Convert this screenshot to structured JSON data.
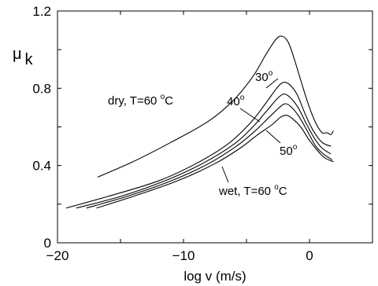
{
  "chart_data": {
    "type": "line",
    "title": "",
    "xlabel": "log v (m/s)",
    "ylabel": {
      "main": "μ",
      "sub": "k"
    },
    "xlim": [
      -20,
      5
    ],
    "ylim": [
      0,
      1.2
    ],
    "x_ticks": [
      -20,
      -10,
      0
    ],
    "x_tick_labels": [
      "−20",
      "−10",
      "0"
    ],
    "y_ticks": [
      0,
      0.4,
      0.8,
      1.2
    ],
    "y_tick_labels": [
      "0",
      "0.4",
      "0.8",
      "1.2"
    ],
    "grid": false,
    "series": [
      {
        "name": "dry, T=60 °C",
        "x": [
          -16.8,
          -14,
          -11,
          -8,
          -6,
          -4.5,
          -3.5,
          -2.7,
          -2.2,
          -1.7,
          -1.2,
          -0.5,
          0,
          0.5,
          1.0,
          1.4,
          1.7,
          1.9
        ],
        "y": [
          0.34,
          0.42,
          0.52,
          0.63,
          0.74,
          0.86,
          0.97,
          1.05,
          1.07,
          1.04,
          0.95,
          0.8,
          0.7,
          0.62,
          0.57,
          0.57,
          0.56,
          0.58
        ]
      },
      {
        "name": "30°",
        "x": [
          -19.3,
          -16,
          -12,
          -9,
          -6.5,
          -4.7,
          -3.5,
          -2.6,
          -2.1,
          -1.6,
          -1,
          -0.3,
          0.3,
          1,
          1.7
        ],
        "y": [
          0.18,
          0.24,
          0.32,
          0.41,
          0.51,
          0.62,
          0.72,
          0.8,
          0.83,
          0.82,
          0.77,
          0.66,
          0.58,
          0.52,
          0.5
        ]
      },
      {
        "name": "40°",
        "x": [
          -18.5,
          -15,
          -11.5,
          -8.5,
          -6,
          -4.5,
          -3.3,
          -2.5,
          -2,
          -1.5,
          -0.9,
          -0.2,
          0.4,
          1,
          1.7
        ],
        "y": [
          0.18,
          0.24,
          0.32,
          0.41,
          0.51,
          0.6,
          0.69,
          0.75,
          0.77,
          0.75,
          0.7,
          0.61,
          0.54,
          0.49,
          0.46
        ]
      },
      {
        "name": "50°",
        "x": [
          -17.7,
          -14.5,
          -11,
          -8,
          -5.8,
          -4.3,
          -3.2,
          -2.4,
          -1.9,
          -1.4,
          -0.8,
          -0.1,
          0.5,
          1.1,
          1.8
        ],
        "y": [
          0.18,
          0.24,
          0.32,
          0.41,
          0.5,
          0.58,
          0.65,
          0.7,
          0.72,
          0.7,
          0.65,
          0.57,
          0.5,
          0.46,
          0.43
        ]
      },
      {
        "name": "wet, T=60 °C",
        "x": [
          -16.9,
          -14,
          -10.5,
          -7.5,
          -5.5,
          -4.1,
          -3,
          -2.3,
          -1.8,
          -1.3,
          -0.7,
          0,
          0.6,
          1.2,
          1.9
        ],
        "y": [
          0.18,
          0.24,
          0.32,
          0.41,
          0.49,
          0.56,
          0.61,
          0.65,
          0.66,
          0.64,
          0.6,
          0.53,
          0.48,
          0.44,
          0.42
        ]
      }
    ],
    "annotations": {
      "dry": {
        "prefix": "dry, T=60 ",
        "sup": "o",
        "suffix": "C"
      },
      "t30": {
        "prefix": "30",
        "sup": "o"
      },
      "t40": {
        "prefix": "40",
        "sup": "o"
      },
      "t50": {
        "prefix": "50",
        "sup": "o"
      },
      "wet": {
        "prefix": "wet, T=60 ",
        "sup": "o",
        "suffix": "C"
      }
    }
  }
}
